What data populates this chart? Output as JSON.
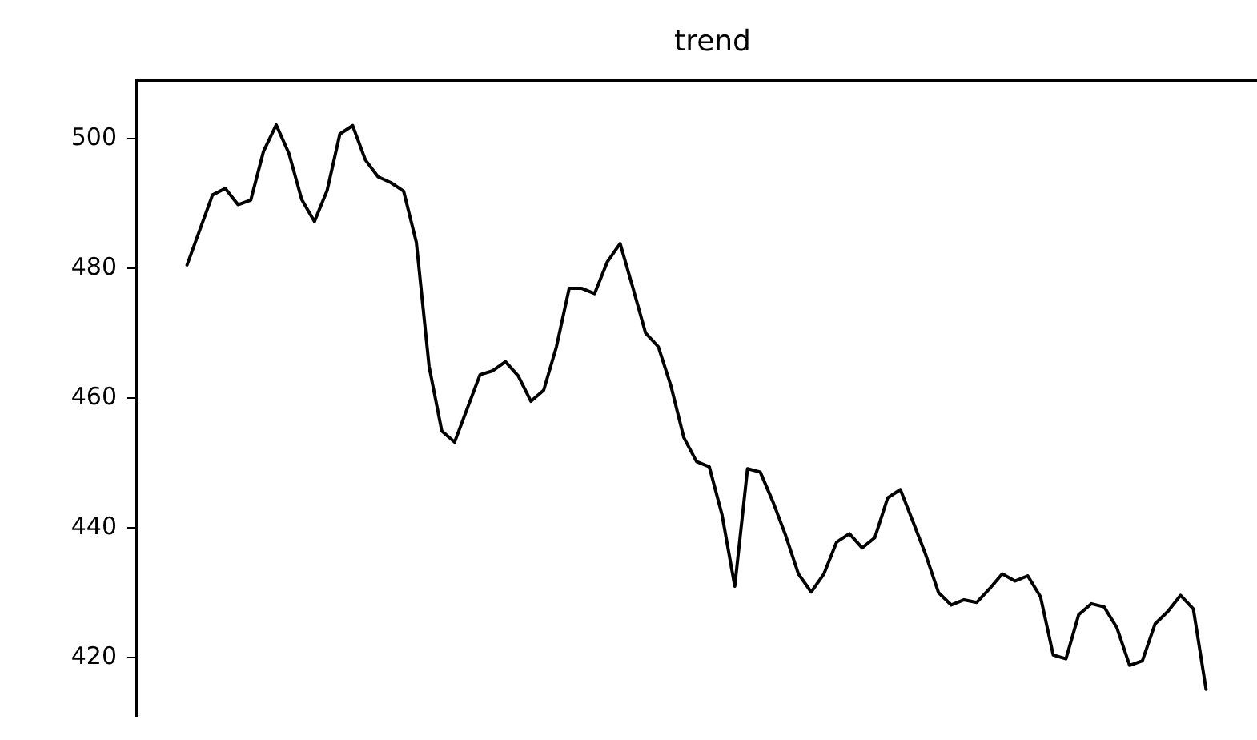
{
  "chart_data": {
    "type": "line",
    "title": "trend",
    "categories": [
      null,
      null,
      null,
      null,
      null,
      null,
      null,
      null,
      null,
      null,
      null,
      null,
      null,
      null,
      null,
      null,
      null,
      null,
      null,
      null,
      null,
      null,
      null,
      null,
      null,
      null,
      null,
      null,
      null,
      null,
      null,
      null,
      null,
      null,
      null,
      null,
      null,
      null,
      null,
      null,
      null,
      null,
      null,
      null,
      null,
      null,
      null,
      null,
      null,
      null,
      null,
      null,
      null,
      null,
      null,
      null,
      null,
      null,
      null,
      null,
      null,
      null,
      null,
      null,
      null,
      null,
      null,
      null,
      null,
      null,
      null,
      null,
      null,
      null,
      null,
      null,
      null,
      null,
      null,
      null,
      null,
      null,
      null,
      null,
      null,
      null,
      null,
      null,
      null
    ],
    "series": [
      {
        "color": "#000000",
        "values": [
          null,
          null,
          null,
          null,
          480.5,
          485.9,
          491.3,
          492.3,
          489.8,
          490.5,
          498.0,
          502.1,
          497.7,
          490.6,
          487.2,
          492.0,
          500.7,
          502.0,
          496.7,
          494.1,
          493.2,
          491.9,
          484.0,
          464.9,
          454.9,
          453.2,
          458.4,
          463.6,
          464.2,
          465.6,
          463.4,
          459.5,
          461.2,
          467.9,
          476.9,
          476.9,
          476.1,
          481.0,
          483.8,
          477.0,
          470.0,
          467.9,
          461.8,
          453.9,
          450.2,
          449.4,
          442.0,
          431,
          449.1,
          448.6,
          444.0,
          438.8,
          432.9,
          430.1,
          432.9,
          437.8,
          439.1,
          436.9,
          438.5,
          444.6,
          445.9,
          440.9,
          435.8,
          430.0,
          428.1,
          428.9,
          428.5,
          430.6,
          432.9,
          431.8,
          432.6,
          429.4,
          420.4,
          419.8,
          426.6,
          428.3,
          427.8,
          424.6,
          418.8,
          419.5,
          425.2,
          427.1,
          429.6,
          427.5,
          415.1,
          null,
          null,
          null,
          null
        ]
      }
    ],
    "ylim": [
      411,
      509
    ],
    "yticks": [
      420,
      440,
      460,
      480,
      500
    ],
    "tick_labels": "y",
    "grid": false
  }
}
